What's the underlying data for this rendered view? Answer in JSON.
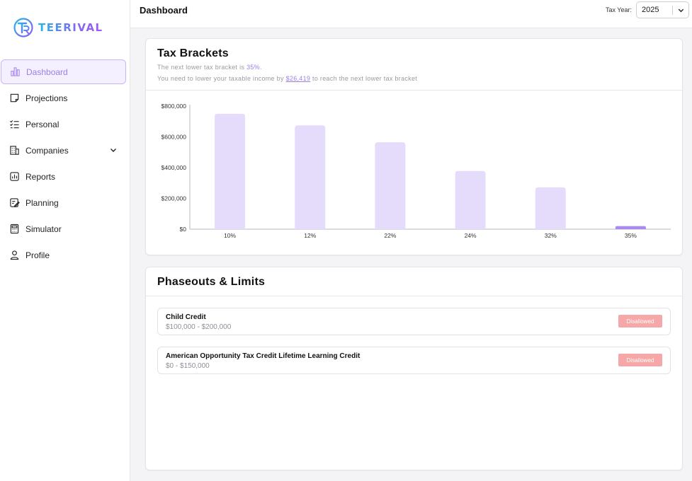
{
  "brand": {
    "name": "TEERIVAL"
  },
  "sidebar": {
    "items": [
      {
        "label": "Dashboard",
        "icon": "bar-chart-icon",
        "active": true
      },
      {
        "label": "Projections",
        "icon": "sticky-note-icon"
      },
      {
        "label": "Personal",
        "icon": "checklist-icon"
      },
      {
        "label": "Companies",
        "icon": "building-icon",
        "has_chevron": true
      },
      {
        "label": "Reports",
        "icon": "report-chart-icon"
      },
      {
        "label": "Planning",
        "icon": "planning-icon"
      },
      {
        "label": "Simulator",
        "icon": "calculator-icon"
      },
      {
        "label": "Profile",
        "icon": "user-icon"
      }
    ]
  },
  "header": {
    "title": "Dashboard",
    "tax_year_label": "Tax Year:",
    "tax_year_value": "2025"
  },
  "tax_brackets": {
    "title": "Tax Brackets",
    "line1_prefix": "The next lower tax bracket is ",
    "line1_value": "35%",
    "line1_suffix": ".",
    "line2_prefix": "You need to lower your taxable income by ",
    "line2_value": "$26,419",
    "line2_suffix": " to reach the next lower tax bracket"
  },
  "chart_data": {
    "type": "bar",
    "categories": [
      "10%",
      "12%",
      "22%",
      "24%",
      "32%",
      "35%"
    ],
    "values": [
      750000,
      675000,
      565000,
      378000,
      272000,
      20000
    ],
    "highlight_index": 5,
    "ylim": [
      0,
      800000
    ],
    "yticks": [
      0,
      200000,
      400000,
      600000,
      800000
    ],
    "ytick_labels": [
      "$0",
      "$200,000",
      "$400,000",
      "$600,000",
      "$800,000"
    ],
    "colors": {
      "bar": "#e5dcfb",
      "highlight": "#a98bf0",
      "axis": "#9a9aa3"
    }
  },
  "phaseouts": {
    "title": "Phaseouts & Limits",
    "items": [
      {
        "name": "Child Credit",
        "range": "$100,000 - $200,000",
        "status": "Disallowed"
      },
      {
        "name": "American Opportunity Tax Credit Lifetime Learning Credit",
        "range": "$0 - $150,000",
        "status": "Disallowed"
      }
    ]
  }
}
